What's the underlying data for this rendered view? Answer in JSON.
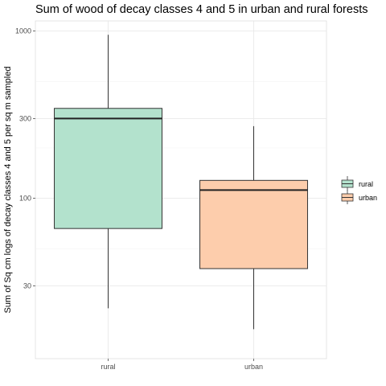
{
  "chart_data": {
    "type": "boxplot",
    "title": "Sum of wood of decay classes 4 and 5 in urban and rural forests",
    "xlabel": "",
    "ylabel": "Sum of Sq cm logs of decay classes 4 and 5 per sq m sampled",
    "y_scale": "log10",
    "ylim": [
      11,
      1150
    ],
    "y_ticks": [
      30,
      100,
      300,
      1000
    ],
    "y_tick_labels": [
      "30",
      "100",
      "300",
      "1000"
    ],
    "y_minor_ticks": [
      10,
      50,
      200,
      500
    ],
    "categories": [
      "rural",
      "urban"
    ],
    "boxes": [
      {
        "category": "rural",
        "whisker_low": 22,
        "q1": 66,
        "median": 300,
        "q3": 345,
        "whisker_high": 950,
        "color": "#b3e2cd"
      },
      {
        "category": "urban",
        "whisker_low": 16.5,
        "q1": 38,
        "median": 112,
        "q3": 128,
        "whisker_high": 270,
        "color": "#fdcdac"
      }
    ],
    "legend": {
      "position": "right",
      "entries": [
        {
          "label": "rural",
          "color": "#b3e2cd"
        },
        {
          "label": "urban",
          "color": "#fdcdac"
        }
      ]
    },
    "grid": true
  }
}
